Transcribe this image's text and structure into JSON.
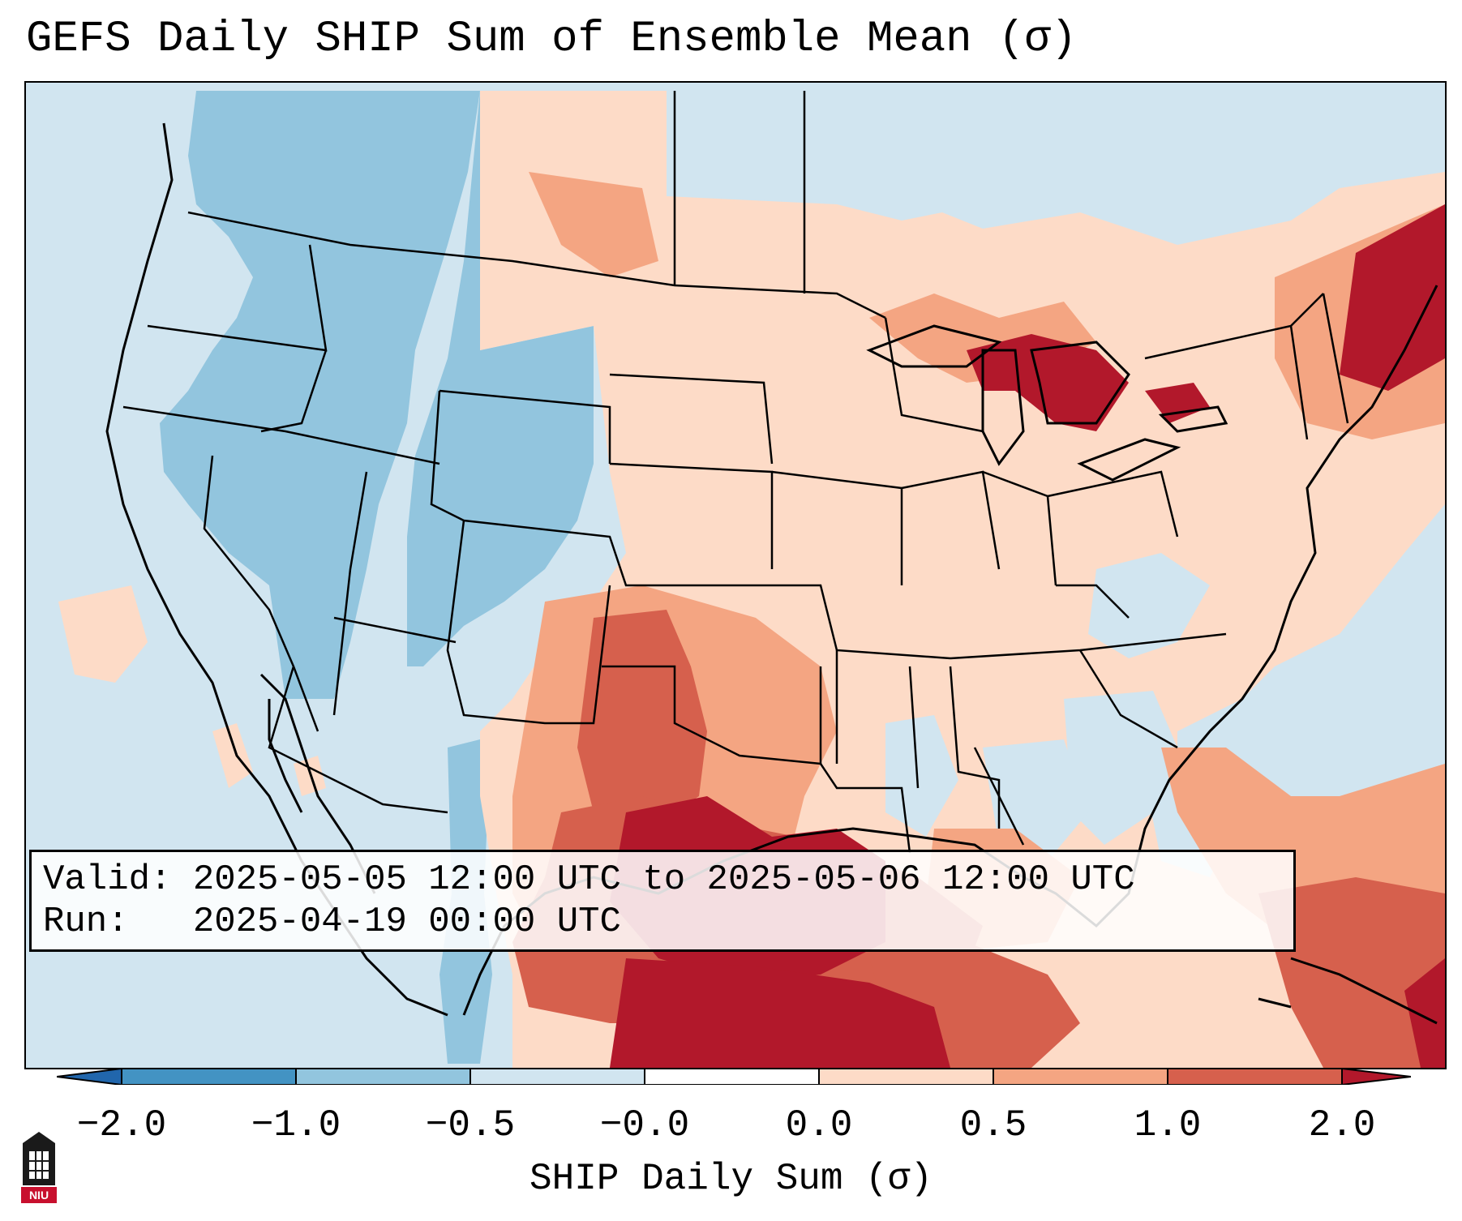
{
  "title": "GEFS Daily SHIP Sum of Ensemble Mean (σ)",
  "info": {
    "valid_line": "Valid: 2025-05-05 12:00 UTC to 2025-05-06 12:00 UTC",
    "run_line": "Run:   2025-04-19 00:00 UTC"
  },
  "colorbar": {
    "label": "SHIP Daily Sum (σ)",
    "ticks": [
      "−2.0",
      "−1.0",
      "−0.5",
      "−0.0",
      "0.0",
      "0.5",
      "1.0",
      "2.0"
    ],
    "bin_colors": [
      "#2166ac",
      "#4393c3",
      "#92c5de",
      "#d1e5f0",
      "#ffffff",
      "#fddbc7",
      "#f4a582",
      "#d6604d",
      "#b2182b"
    ],
    "extend": "both"
  },
  "map": {
    "projection": "Lambert Conformal (CONUS)",
    "background_color": "#d1e5f0",
    "fill_colors": {
      "neg_light": "#d1e5f0",
      "neg_mid": "#92c5de",
      "pos_light": "#fddbc7",
      "pos_mid": "#f4a582",
      "pos_strong": "#d6604d",
      "pos_max": "#b2182b"
    },
    "boundaries_color": "#000000"
  },
  "logo": {
    "name": "NIU",
    "icon": "niu-logo-icon"
  }
}
